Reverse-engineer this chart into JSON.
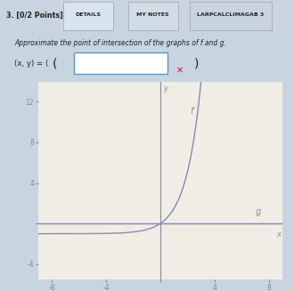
{
  "title_text": "3. [0/2 Points]",
  "tab1": "DETAILS",
  "tab2": "MY NOTES",
  "tab3": "LARPCALCLIMAGAB 3",
  "question_text": "Approximate the point of intersection of the graphs of f and g.",
  "input_label": "(x, y) = (",
  "xlim": [
    -9,
    9
  ],
  "ylim": [
    -5.5,
    14
  ],
  "xticks": [
    -8,
    -4,
    0,
    4,
    8
  ],
  "yticks": [
    -4,
    0,
    4,
    8,
    12
  ],
  "xtick_labels": [
    "-8",
    "-4",
    "",
    "4",
    "8"
  ],
  "ytick_labels": [
    "-4",
    "",
    "4",
    "8",
    "12"
  ],
  "x_label": "x",
  "y_label": "y",
  "curve_color": "#8888bb",
  "f_label": "f",
  "g_label": "g",
  "page_bg": "#c8d4e0",
  "plot_bg": "#f0ede4",
  "header_bg": "#c8d4e0",
  "tab_active_bg": "#d8e4f0",
  "tab_border": "#999999",
  "text_color": "#222222",
  "input_border": "#5599cc",
  "red_x_color": "#cc2222",
  "axis_color": "#888899",
  "tick_color": "#888899"
}
